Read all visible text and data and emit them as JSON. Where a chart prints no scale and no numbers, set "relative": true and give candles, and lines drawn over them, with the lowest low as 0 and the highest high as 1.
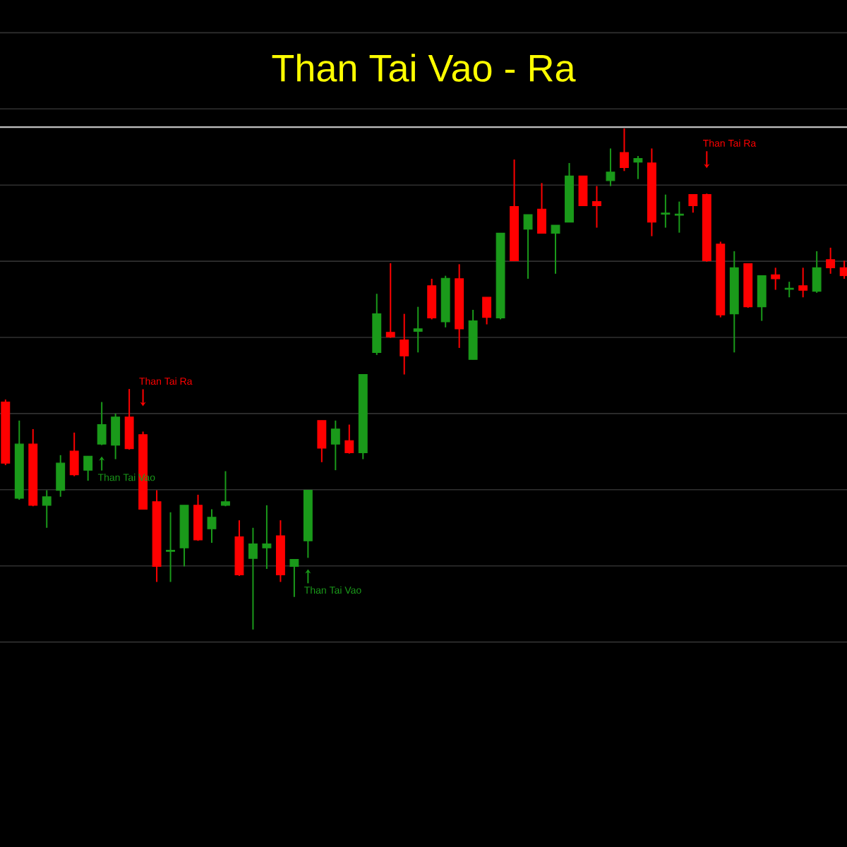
{
  "chart_data": {
    "type": "candlestick",
    "title": "Than Tai Vao - Ra",
    "relative": true,
    "grid": "y",
    "categories": [
      null,
      null,
      null,
      null,
      null,
      null,
      null,
      null,
      null,
      null,
      null,
      null,
      null,
      null,
      null,
      null,
      null,
      null,
      null,
      null,
      null,
      null,
      null,
      null,
      null,
      null,
      null,
      null,
      null,
      null,
      null,
      null,
      null,
      null,
      null,
      null,
      null,
      null,
      null,
      null,
      null,
      null,
      null,
      null,
      null,
      null,
      null,
      null,
      null,
      null,
      null,
      null,
      null,
      null,
      null,
      null,
      null,
      null,
      null,
      null,
      null,
      null
    ],
    "ohlc": [
      [
        0.454,
        0.459,
        0.328,
        0.332
      ],
      [
        0.262,
        0.417,
        0.259,
        0.37
      ],
      [
        0.37,
        0.4,
        0.246,
        0.248
      ],
      [
        0.248,
        0.278,
        0.203,
        0.265
      ],
      [
        0.278,
        0.348,
        0.265,
        0.332
      ],
      [
        0.356,
        0.393,
        0.306,
        0.309
      ],
      [
        0.318,
        0.346,
        0.297,
        0.346
      ],
      [
        0.37,
        0.454,
        0.368,
        0.409
      ],
      [
        0.368,
        0.431,
        0.34,
        0.424
      ],
      [
        0.424,
        0.48,
        0.359,
        0.361
      ],
      [
        0.389,
        0.395,
        0.24,
        0.24
      ],
      [
        0.255,
        0.278,
        0.095,
        0.126
      ],
      [
        0.156,
        0.234,
        0.095,
        0.158
      ],
      [
        0.163,
        0.248,
        0.126,
        0.248
      ],
      [
        0.248,
        0.269,
        0.177,
        0.179
      ],
      [
        0.201,
        0.24,
        0.173,
        0.224
      ],
      [
        0.248,
        0.316,
        0.246,
        0.255
      ],
      [
        0.185,
        0.218,
        0.107,
        0.109
      ],
      [
        0.142,
        0.203,
        0,
        0.171
      ],
      [
        0.163,
        0.248,
        0.121,
        0.171
      ],
      [
        0.187,
        0.218,
        0.095,
        0.109
      ],
      [
        0.126,
        0.14,
        0.065,
        0.14
      ],
      [
        0.177,
        0.278,
        0.143,
        0.278
      ],
      [
        0.417,
        0.417,
        0.334,
        0.362
      ],
      [
        0.37,
        0.417,
        0.318,
        0.4
      ],
      [
        0.377,
        0.409,
        0.351,
        0.353
      ],
      [
        0.353,
        0.509,
        0.34,
        0.509
      ],
      [
        0.553,
        0.67,
        0.548,
        0.63
      ],
      [
        0.593,
        0.731,
        0.582,
        0.584
      ],
      [
        0.578,
        0.63,
        0.509,
        0.546
      ],
      [
        0.595,
        0.644,
        0.553,
        0.6
      ],
      [
        0.686,
        0.7,
        0.619,
        0.622
      ],
      [
        0.614,
        0.706,
        0.603,
        0.701
      ],
      [
        0.7,
        0.729,
        0.562,
        0.6
      ],
      [
        0.539,
        0.638,
        0.539,
        0.616
      ],
      [
        0.663,
        0.663,
        0.609,
        0.623
      ],
      [
        0.622,
        0.791,
        0.619,
        0.791
      ],
      [
        0.844,
        0.938,
        0.736,
        0.736
      ],
      [
        0.799,
        0.828,
        0.7,
        0.828
      ],
      [
        0.839,
        0.891,
        0.791,
        0.791
      ],
      [
        0.791,
        0.807,
        0.71,
        0.807
      ],
      [
        0.813,
        0.931,
        0.813,
        0.905
      ],
      [
        0.905,
        0.905,
        0.846,
        0.846
      ],
      [
        0.854,
        0.885,
        0.802,
        0.846
      ],
      [
        0.896,
        0.96,
        0.885,
        0.913
      ],
      [
        0.952,
        1,
        0.915,
        0.922
      ],
      [
        0.933,
        0.945,
        0.899,
        0.94
      ],
      [
        0.931,
        0.96,
        0.785,
        0.813
      ],
      [
        0.829,
        0.868,
        0.802,
        0.831
      ],
      [
        0.827,
        0.854,
        0.792,
        0.829
      ],
      [
        0.868,
        0.868,
        0.832,
        0.846
      ],
      [
        0.868,
        0.87,
        0.734,
        0.736
      ],
      [
        0.769,
        0.774,
        0.623,
        0.628
      ],
      [
        0.63,
        0.755,
        0.553,
        0.722
      ],
      [
        0.73,
        0.73,
        0.642,
        0.644
      ],
      [
        0.644,
        0.706,
        0.616,
        0.706
      ],
      [
        0.708,
        0.722,
        0.678,
        0.7
      ],
      [
        0.679,
        0.694,
        0.663,
        0.681
      ],
      [
        0.686,
        0.722,
        0.663,
        0.677
      ],
      [
        0.675,
        0.755,
        0.672,
        0.722
      ],
      [
        0.738,
        0.762,
        0.71,
        0.722
      ],
      [
        0.722,
        0.736,
        0.7,
        0.706
      ]
    ],
    "colors": [
      "#ff0000",
      "#1a9a1a",
      "#ff0000",
      "#1a9a1a",
      "#1a9a1a",
      "#ff0000",
      "#1a9a1a",
      "#1a9a1a",
      "#1a9a1a",
      "#ff0000",
      "#ff0000",
      "#ff0000",
      "#1a9a1a",
      "#1a9a1a",
      "#ff0000",
      "#1a9a1a",
      "#1a9a1a",
      "#ff0000",
      "#1a9a1a",
      "#1a9a1a",
      "#ff0000",
      "#1a9a1a",
      "#1a9a1a",
      "#ff0000",
      "#1a9a1a",
      "#ff0000",
      "#1a9a1a",
      "#1a9a1a",
      "#ff0000",
      "#ff0000",
      "#1a9a1a",
      "#ff0000",
      "#1a9a1a",
      "#ff0000",
      "#1a9a1a",
      "#ff0000",
      "#1a9a1a",
      "#ff0000",
      "#1a9a1a",
      "#ff0000",
      "#1a9a1a",
      "#1a9a1a",
      "#ff0000",
      "#ff0000",
      "#1a9a1a",
      "#ff0000",
      "#1a9a1a",
      "#ff0000",
      "#1a9a1a",
      "#1a9a1a",
      "#ff0000",
      "#ff0000",
      "#ff0000",
      "#1a9a1a",
      "#ff0000",
      "#1a9a1a",
      "#ff0000",
      "#1a9a1a",
      "#ff0000",
      "#1a9a1a",
      "#ff0000",
      "#ff0000"
    ],
    "annotations": [
      "Than Tai Ra",
      "Than Tai Vao",
      "Than Tai Vao",
      "Than Tai Ra"
    ]
  }
}
